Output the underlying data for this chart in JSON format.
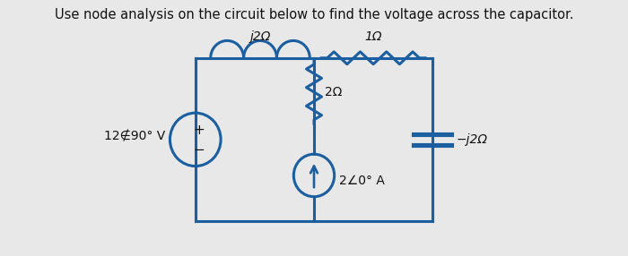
{
  "title_line1": "Use node analysis on the circuit below to find the voltage across the capacitor.",
  "title_fontsize": 10.5,
  "bg_color": "#e8e8e8",
  "circuit_color": "#1c5fa0",
  "text_color": "#111111",
  "label_j2_top": "j2Ω",
  "label_1_top": "1Ω",
  "label_2_mid": "2Ω",
  "label_neg_j2": "−j2Ω",
  "label_source_v": "12∉90° V",
  "label_source_i": "2∠0° A",
  "circuit_lw": 2.2,
  "font_size_labels": 10
}
